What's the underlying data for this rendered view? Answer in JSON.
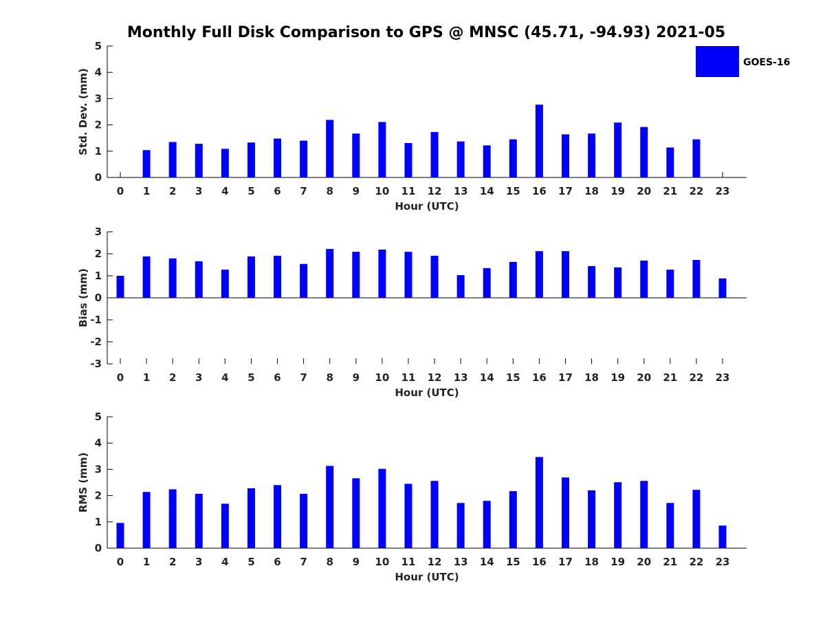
{
  "chart_data": {
    "title": "Monthly Full Disk Comparison to GPS @ MNSC (45.71, -94.93) 2021-05",
    "legend": {
      "label": "GOES-16",
      "color": "#0000ff",
      "placement": "top-right"
    },
    "panels": [
      {
        "type": "bar",
        "xlabel": "Hour (UTC)",
        "ylabel": "Std. Dev. (mm)",
        "ylim": [
          0,
          5
        ],
        "yticks": [
          "0",
          "1",
          "2",
          "3",
          "4",
          "5"
        ],
        "categories": [
          "0",
          "1",
          "2",
          "3",
          "4",
          "5",
          "6",
          "7",
          "8",
          "9",
          "10",
          "11",
          "12",
          "13",
          "14",
          "15",
          "16",
          "17",
          "18",
          "19",
          "20",
          "21",
          "22",
          "23"
        ],
        "values": [
          null,
          1.04,
          1.35,
          1.28,
          1.09,
          1.33,
          1.48,
          1.4,
          2.19,
          1.67,
          2.11,
          1.31,
          1.73,
          1.37,
          1.22,
          1.45,
          2.77,
          1.64,
          1.67,
          2.09,
          1.92,
          1.14,
          1.45,
          null
        ]
      },
      {
        "type": "bar",
        "xlabel": "Hour (UTC)",
        "ylabel": "Bias (mm)",
        "ylim": [
          -3,
          3
        ],
        "yticks": [
          "-3",
          "-2",
          "-1",
          "0",
          "1",
          "2",
          "3"
        ],
        "categories": [
          "0",
          "1",
          "2",
          "3",
          "4",
          "5",
          "6",
          "7",
          "8",
          "9",
          "10",
          "11",
          "12",
          "13",
          "14",
          "15",
          "16",
          "17",
          "18",
          "19",
          "20",
          "21",
          "22",
          "23"
        ],
        "values": [
          1.0,
          1.88,
          1.79,
          1.66,
          1.28,
          1.88,
          1.91,
          1.54,
          2.22,
          2.09,
          2.19,
          2.09,
          1.91,
          1.03,
          1.35,
          1.63,
          2.12,
          2.12,
          1.44,
          1.38,
          1.69,
          1.28,
          1.72,
          0.88
        ]
      },
      {
        "type": "bar",
        "xlabel": "Hour (UTC)",
        "ylabel": "RMS (mm)",
        "ylim": [
          0,
          5
        ],
        "yticks": [
          "0",
          "1",
          "2",
          "3",
          "4",
          "5"
        ],
        "categories": [
          "0",
          "1",
          "2",
          "3",
          "4",
          "5",
          "6",
          "7",
          "8",
          "9",
          "10",
          "11",
          "12",
          "13",
          "14",
          "15",
          "16",
          "17",
          "18",
          "19",
          "20",
          "21",
          "22",
          "23"
        ],
        "values": [
          0.96,
          2.14,
          2.24,
          2.07,
          1.69,
          2.28,
          2.4,
          2.07,
          3.13,
          2.66,
          3.02,
          2.45,
          2.56,
          1.72,
          1.8,
          2.17,
          3.47,
          2.69,
          2.2,
          2.51,
          2.56,
          1.72,
          2.22,
          0.86
        ]
      }
    ]
  }
}
